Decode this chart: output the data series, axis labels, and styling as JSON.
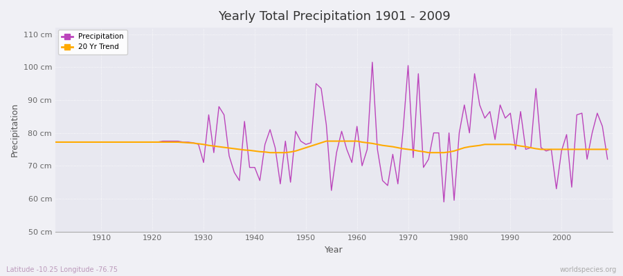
{
  "title": "Yearly Total Precipitation 1901 - 2009",
  "xlabel": "Year",
  "ylabel": "Precipitation",
  "subtitle": "Latitude -10.25 Longitude -76.75",
  "credit": "worldspecies.org",
  "ylim": [
    50,
    112
  ],
  "yticks": [
    50,
    60,
    70,
    80,
    90,
    100,
    110
  ],
  "ytick_labels": [
    "50 cm",
    "60 cm",
    "70 cm",
    "80 cm",
    "90 cm",
    "100 cm",
    "110 cm"
  ],
  "xlim": [
    1901,
    2010
  ],
  "xticks": [
    1910,
    1920,
    1930,
    1940,
    1950,
    1960,
    1970,
    1980,
    1990,
    2000
  ],
  "bg_color": "#f0f0f5",
  "plot_bg_color": "#e8e8f0",
  "line_color_precip": "#bb44bb",
  "line_color_trend": "#ffaa00",
  "precip_data": {
    "1901": 77.2,
    "1902": 77.2,
    "1903": 77.2,
    "1904": 77.2,
    "1905": 77.2,
    "1906": 77.2,
    "1907": 77.2,
    "1908": 77.2,
    "1909": 77.2,
    "1910": 77.2,
    "1911": 77.2,
    "1912": 77.2,
    "1913": 77.2,
    "1914": 77.2,
    "1915": 77.2,
    "1916": 77.2,
    "1917": 77.2,
    "1918": 77.2,
    "1919": 77.2,
    "1920": 77.2,
    "1921": 77.2,
    "1922": 77.5,
    "1923": 77.5,
    "1924": 77.5,
    "1925": 77.5,
    "1926": 77.2,
    "1927": 77.2,
    "1928": 77.0,
    "1929": 76.5,
    "1930": 71.0,
    "1931": 85.5,
    "1932": 74.0,
    "1933": 88.0,
    "1934": 85.5,
    "1935": 73.0,
    "1936": 68.0,
    "1937": 65.5,
    "1938": 83.5,
    "1939": 69.5,
    "1940": 69.5,
    "1941": 65.5,
    "1942": 76.5,
    "1943": 81.0,
    "1944": 75.5,
    "1945": 64.5,
    "1946": 77.5,
    "1947": 65.0,
    "1948": 80.5,
    "1949": 77.5,
    "1950": 76.5,
    "1951": 77.0,
    "1952": 95.0,
    "1953": 93.5,
    "1954": 82.5,
    "1955": 62.5,
    "1956": 74.0,
    "1957": 80.5,
    "1958": 75.0,
    "1959": 71.0,
    "1960": 82.0,
    "1961": 70.0,
    "1962": 75.0,
    "1963": 101.5,
    "1964": 75.0,
    "1965": 65.5,
    "1966": 64.0,
    "1967": 73.5,
    "1968": 64.5,
    "1969": 80.5,
    "1970": 100.5,
    "1971": 72.5,
    "1972": 98.0,
    "1973": 69.5,
    "1974": 72.0,
    "1975": 80.0,
    "1976": 80.0,
    "1977": 59.0,
    "1978": 80.0,
    "1979": 59.5,
    "1980": 80.0,
    "1981": 88.5,
    "1982": 80.0,
    "1983": 98.0,
    "1984": 88.5,
    "1985": 84.5,
    "1986": 86.5,
    "1987": 78.0,
    "1988": 88.5,
    "1989": 84.5,
    "1990": 86.0,
    "1991": 75.0,
    "1992": 86.5,
    "1993": 75.0,
    "1994": 75.5,
    "1995": 93.5,
    "1996": 75.5,
    "1997": 74.5,
    "1998": 75.0,
    "1999": 63.0,
    "2000": 74.5,
    "2001": 79.5,
    "2002": 63.5,
    "2003": 85.5,
    "2004": 86.0,
    "2005": 72.0,
    "2006": 80.0,
    "2007": 86.0,
    "2008": 82.0,
    "2009": 72.0
  },
  "trend_data": {
    "1901": 77.2,
    "1902": 77.2,
    "1903": 77.2,
    "1904": 77.2,
    "1905": 77.2,
    "1906": 77.2,
    "1907": 77.2,
    "1908": 77.2,
    "1909": 77.2,
    "1910": 77.2,
    "1911": 77.2,
    "1912": 77.2,
    "1913": 77.2,
    "1914": 77.2,
    "1915": 77.2,
    "1916": 77.2,
    "1917": 77.2,
    "1918": 77.2,
    "1919": 77.2,
    "1920": 77.2,
    "1921": 77.2,
    "1922": 77.2,
    "1923": 77.2,
    "1924": 77.2,
    "1925": 77.2,
    "1926": 77.1,
    "1927": 77.0,
    "1928": 76.9,
    "1929": 76.7,
    "1930": 76.5,
    "1931": 76.2,
    "1932": 76.0,
    "1933": 75.8,
    "1934": 75.6,
    "1935": 75.4,
    "1936": 75.2,
    "1937": 75.0,
    "1938": 74.8,
    "1939": 74.7,
    "1940": 74.5,
    "1941": 74.3,
    "1942": 74.2,
    "1943": 74.0,
    "1944": 74.0,
    "1945": 74.0,
    "1946": 74.0,
    "1947": 74.2,
    "1948": 74.5,
    "1949": 75.0,
    "1950": 75.5,
    "1951": 76.0,
    "1952": 76.5,
    "1953": 77.0,
    "1954": 77.5,
    "1955": 77.5,
    "1956": 77.5,
    "1957": 77.5,
    "1958": 77.5,
    "1959": 77.5,
    "1960": 77.5,
    "1961": 77.2,
    "1962": 77.0,
    "1963": 76.8,
    "1964": 76.5,
    "1965": 76.2,
    "1966": 76.0,
    "1967": 75.8,
    "1968": 75.5,
    "1969": 75.2,
    "1970": 75.0,
    "1971": 74.8,
    "1972": 74.5,
    "1973": 74.3,
    "1974": 74.0,
    "1975": 74.0,
    "1976": 74.0,
    "1977": 74.0,
    "1978": 74.2,
    "1979": 74.5,
    "1980": 75.0,
    "1981": 75.5,
    "1982": 75.8,
    "1983": 76.0,
    "1984": 76.2,
    "1985": 76.5,
    "1986": 76.5,
    "1987": 76.5,
    "1988": 76.5,
    "1989": 76.5,
    "1990": 76.5,
    "1991": 76.3,
    "1992": 76.0,
    "1993": 75.8,
    "1994": 75.5,
    "1995": 75.2,
    "1996": 75.0,
    "1997": 75.0,
    "1998": 75.0,
    "1999": 75.0,
    "2000": 75.0,
    "2001": 75.0,
    "2002": 75.0,
    "2003": 75.0,
    "2004": 75.0,
    "2005": 75.0,
    "2006": 75.0,
    "2007": 75.0,
    "2008": 75.0,
    "2009": 75.0
  }
}
